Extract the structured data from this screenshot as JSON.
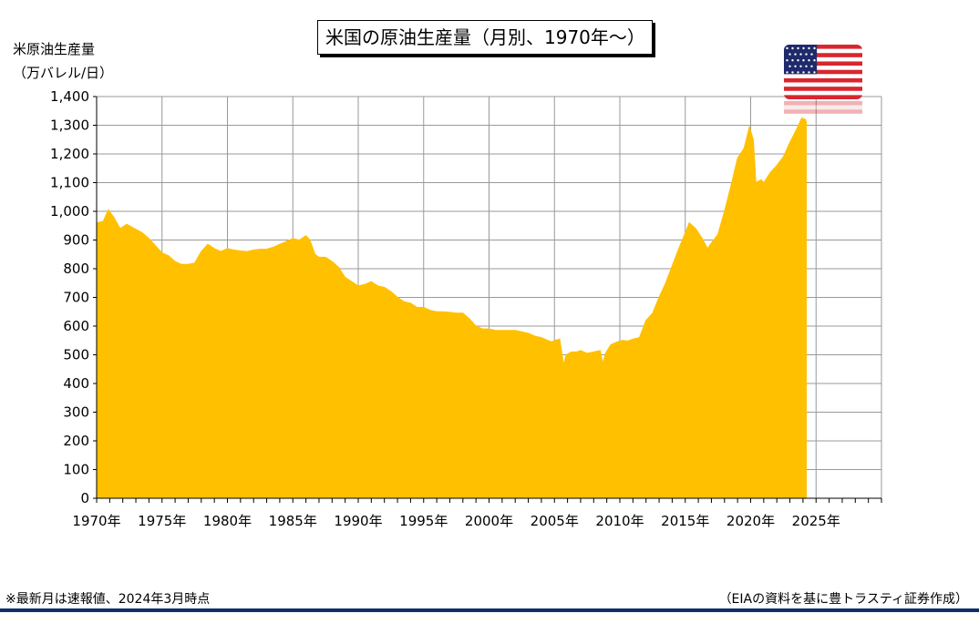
{
  "title": "米国の原油生産量（月別、1970年～）",
  "ylabel_line1": "米原油生産量",
  "ylabel_line2": "（万バレル/日）",
  "footnote_left": "※最新月は速報値、2024年3月時点",
  "footnote_right": "（EIAの資料を基に豊トラスティ証券作成）",
  "flag_icon": "us-flag-icon",
  "colors": {
    "fill": "#FFC000",
    "grid": "#999999",
    "axis": "#000000",
    "rule": "#0E2F6B"
  },
  "chart_data": {
    "type": "area",
    "x_unit": "year",
    "xlim": [
      1970,
      2030
    ],
    "ylim": [
      0,
      1400
    ],
    "y_ticks": [
      "0",
      "100",
      "200",
      "300",
      "400",
      "500",
      "600",
      "700",
      "800",
      "900",
      "1,000",
      "1,100",
      "1,200",
      "1,300",
      "1,400"
    ],
    "x_ticks": [
      "1970年",
      "1975年",
      "1980年",
      "1985年",
      "1990年",
      "1995年",
      "2000年",
      "2005年",
      "2010年",
      "2015年",
      "2020年",
      "2025年"
    ],
    "grid": true,
    "series": [
      {
        "points": [
          [
            1970.0,
            960
          ],
          [
            1970.5,
            965
          ],
          [
            1970.9,
            1005
          ],
          [
            1971.3,
            980
          ],
          [
            1971.8,
            940
          ],
          [
            1972.3,
            955
          ],
          [
            1972.9,
            940
          ],
          [
            1973.5,
            925
          ],
          [
            1974.0,
            905
          ],
          [
            1974.5,
            880
          ],
          [
            1975.0,
            855
          ],
          [
            1975.5,
            845
          ],
          [
            1976.0,
            825
          ],
          [
            1976.5,
            815
          ],
          [
            1977.0,
            815
          ],
          [
            1977.5,
            820
          ],
          [
            1978.0,
            860
          ],
          [
            1978.5,
            885
          ],
          [
            1979.0,
            870
          ],
          [
            1979.5,
            860
          ],
          [
            1980.0,
            870
          ],
          [
            1980.5,
            865
          ],
          [
            1981.0,
            862
          ],
          [
            1981.5,
            860
          ],
          [
            1982.0,
            865
          ],
          [
            1982.5,
            868
          ],
          [
            1983.0,
            868
          ],
          [
            1983.5,
            875
          ],
          [
            1984.0,
            885
          ],
          [
            1984.5,
            895
          ],
          [
            1985.0,
            905
          ],
          [
            1985.5,
            900
          ],
          [
            1986.0,
            915
          ],
          [
            1986.3,
            900
          ],
          [
            1986.7,
            850
          ],
          [
            1987.0,
            840
          ],
          [
            1987.5,
            840
          ],
          [
            1988.0,
            825
          ],
          [
            1988.5,
            805
          ],
          [
            1989.0,
            770
          ],
          [
            1989.5,
            755
          ],
          [
            1990.0,
            740
          ],
          [
            1990.5,
            745
          ],
          [
            1991.0,
            755
          ],
          [
            1991.5,
            740
          ],
          [
            1992.0,
            735
          ],
          [
            1992.5,
            720
          ],
          [
            1993.0,
            700
          ],
          [
            1993.5,
            685
          ],
          [
            1994.0,
            680
          ],
          [
            1994.5,
            665
          ],
          [
            1995.0,
            665
          ],
          [
            1995.5,
            655
          ],
          [
            1996.0,
            650
          ],
          [
            1996.5,
            650
          ],
          [
            1997.0,
            648
          ],
          [
            1997.5,
            645
          ],
          [
            1998.0,
            645
          ],
          [
            1998.5,
            625
          ],
          [
            1999.0,
            600
          ],
          [
            1999.5,
            590
          ],
          [
            2000.0,
            590
          ],
          [
            2000.5,
            585
          ],
          [
            2001.0,
            585
          ],
          [
            2001.5,
            585
          ],
          [
            2002.0,
            585
          ],
          [
            2002.5,
            580
          ],
          [
            2003.0,
            575
          ],
          [
            2003.5,
            565
          ],
          [
            2004.0,
            560
          ],
          [
            2004.5,
            550
          ],
          [
            2004.8,
            545
          ],
          [
            2005.0,
            550
          ],
          [
            2005.4,
            555
          ],
          [
            2005.7,
            465
          ],
          [
            2005.9,
            500
          ],
          [
            2006.3,
            510
          ],
          [
            2006.7,
            510
          ],
          [
            2007.0,
            515
          ],
          [
            2007.5,
            505
          ],
          [
            2008.0,
            510
          ],
          [
            2008.5,
            515
          ],
          [
            2008.7,
            470
          ],
          [
            2008.9,
            505
          ],
          [
            2009.3,
            535
          ],
          [
            2009.8,
            545
          ],
          [
            2010.2,
            550
          ],
          [
            2010.6,
            548
          ],
          [
            2011.0,
            555
          ],
          [
            2011.5,
            560
          ],
          [
            2012.0,
            620
          ],
          [
            2012.5,
            645
          ],
          [
            2013.0,
            700
          ],
          [
            2013.5,
            750
          ],
          [
            2014.0,
            810
          ],
          [
            2014.5,
            870
          ],
          [
            2015.0,
            925
          ],
          [
            2015.3,
            960
          ],
          [
            2015.8,
            940
          ],
          [
            2016.3,
            905
          ],
          [
            2016.7,
            870
          ],
          [
            2017.0,
            890
          ],
          [
            2017.5,
            920
          ],
          [
            2018.0,
            1000
          ],
          [
            2018.5,
            1090
          ],
          [
            2019.0,
            1185
          ],
          [
            2019.5,
            1220
          ],
          [
            2019.9,
            1295
          ],
          [
            2020.2,
            1250
          ],
          [
            2020.4,
            1100
          ],
          [
            2020.8,
            1110
          ],
          [
            2021.0,
            1100
          ],
          [
            2021.5,
            1135
          ],
          [
            2022.0,
            1160
          ],
          [
            2022.5,
            1190
          ],
          [
            2023.0,
            1240
          ],
          [
            2023.5,
            1285
          ],
          [
            2023.9,
            1325
          ],
          [
            2024.2,
            1320
          ],
          [
            2024.25,
            1310
          ]
        ]
      }
    ]
  }
}
